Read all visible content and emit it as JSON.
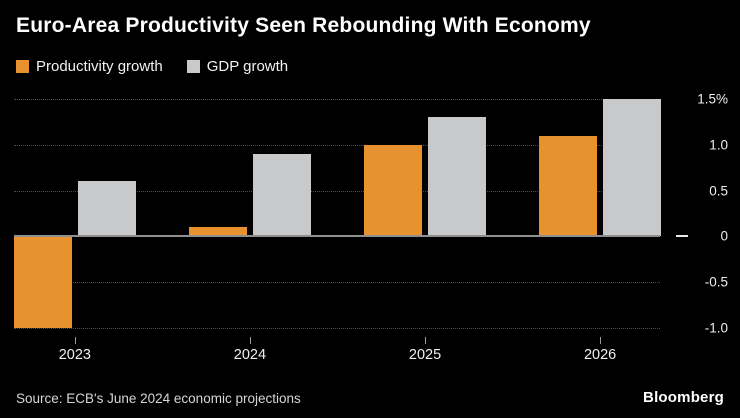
{
  "title": "Euro-Area Productivity Seen Rebounding With Economy",
  "legend": {
    "items": [
      {
        "label": "Productivity growth",
        "color": "#E8912F"
      },
      {
        "label": "GDP growth",
        "color": "#C8C9CA"
      }
    ]
  },
  "footer": {
    "source": "Source: ECB's June 2024 economic projections",
    "brand": "Bloomberg"
  },
  "colors": {
    "background": "#000000",
    "productivity_bar": "#E8912F",
    "gdp_bar": "#C8C9CA",
    "gridline": "#4d4d4d",
    "zero_line": "#8f8f8f",
    "axis_text": "#ededed"
  },
  "chart_data": {
    "type": "bar",
    "title": "Euro-Area Productivity Seen Rebounding With Economy",
    "categories": [
      "2023",
      "2024",
      "2025",
      "2026"
    ],
    "series": [
      {
        "name": "Productivity growth",
        "color": "#E8912F",
        "values": [
          -1.0,
          0.1,
          1.0,
          1.1
        ]
      },
      {
        "name": "GDP growth",
        "color": "#C8C9CA",
        "values": [
          0.6,
          0.9,
          1.3,
          1.5
        ]
      }
    ],
    "xlabel": "",
    "ylabel": "",
    "ylim": [
      -1.1,
      1.6
    ],
    "yticks": [
      {
        "value": 1.5,
        "label": "1.5%"
      },
      {
        "value": 1.0,
        "label": "1.0"
      },
      {
        "value": 0.5,
        "label": "0.5"
      },
      {
        "value": 0,
        "label": "0"
      },
      {
        "value": -0.5,
        "label": "-0.5"
      },
      {
        "value": -1.0,
        "label": "-1.0"
      }
    ],
    "grid": "dotted-horizontal",
    "legend_position": "top-left",
    "axis_labels_side": "right"
  }
}
